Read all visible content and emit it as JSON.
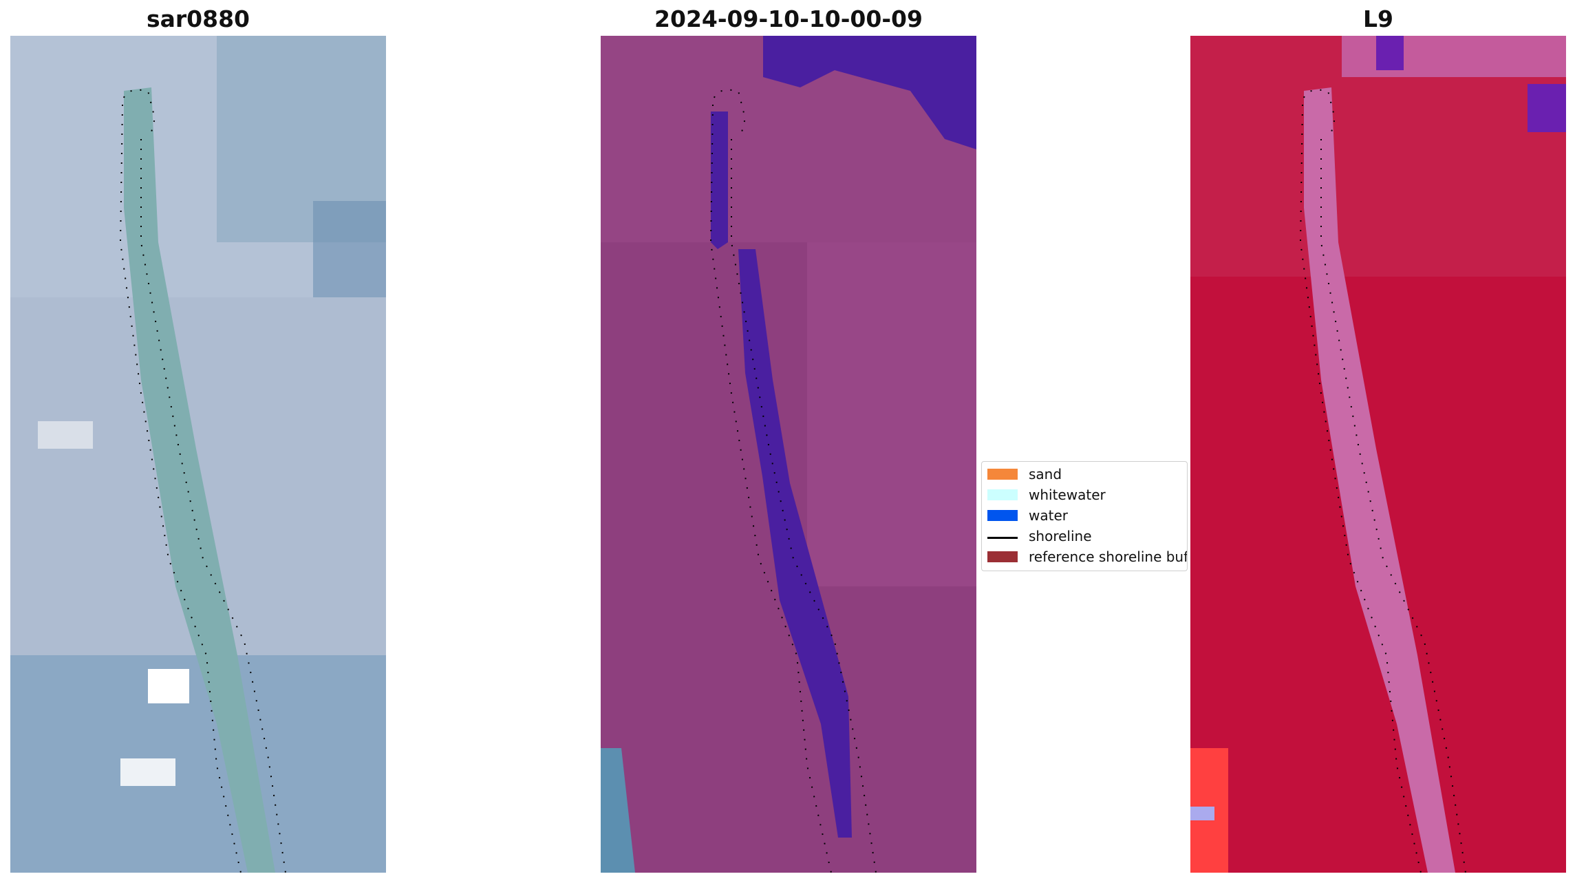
{
  "panels": [
    {
      "title": "sar0880",
      "image_desc_icon": "rgb-image"
    },
    {
      "title": "2024-09-10-10-00-09",
      "image_desc_icon": "classified-image"
    },
    {
      "title": "L9",
      "image_desc_icon": "index-image"
    }
  ],
  "legend": {
    "items": [
      {
        "label": "sand",
        "color": "#f5873a",
        "kind": "patch"
      },
      {
        "label": "whitewater",
        "color": "#ccffff",
        "kind": "patch"
      },
      {
        "label": "water",
        "color": "#0055ee",
        "kind": "patch"
      },
      {
        "label": "shoreline",
        "color": "#000000",
        "kind": "line"
      },
      {
        "label": "reference shoreline buffer",
        "color": "#9b2f35",
        "kind": "patch"
      }
    ]
  },
  "colors": {
    "panel1_base": "#a7b6cc",
    "panel1_channel": "#80aab0",
    "panel2_base": "#8e3f7e",
    "panel2_water": "#4a1fa0",
    "panel3_base": "#c2103c",
    "panel3_channel": "#c96aa8"
  }
}
